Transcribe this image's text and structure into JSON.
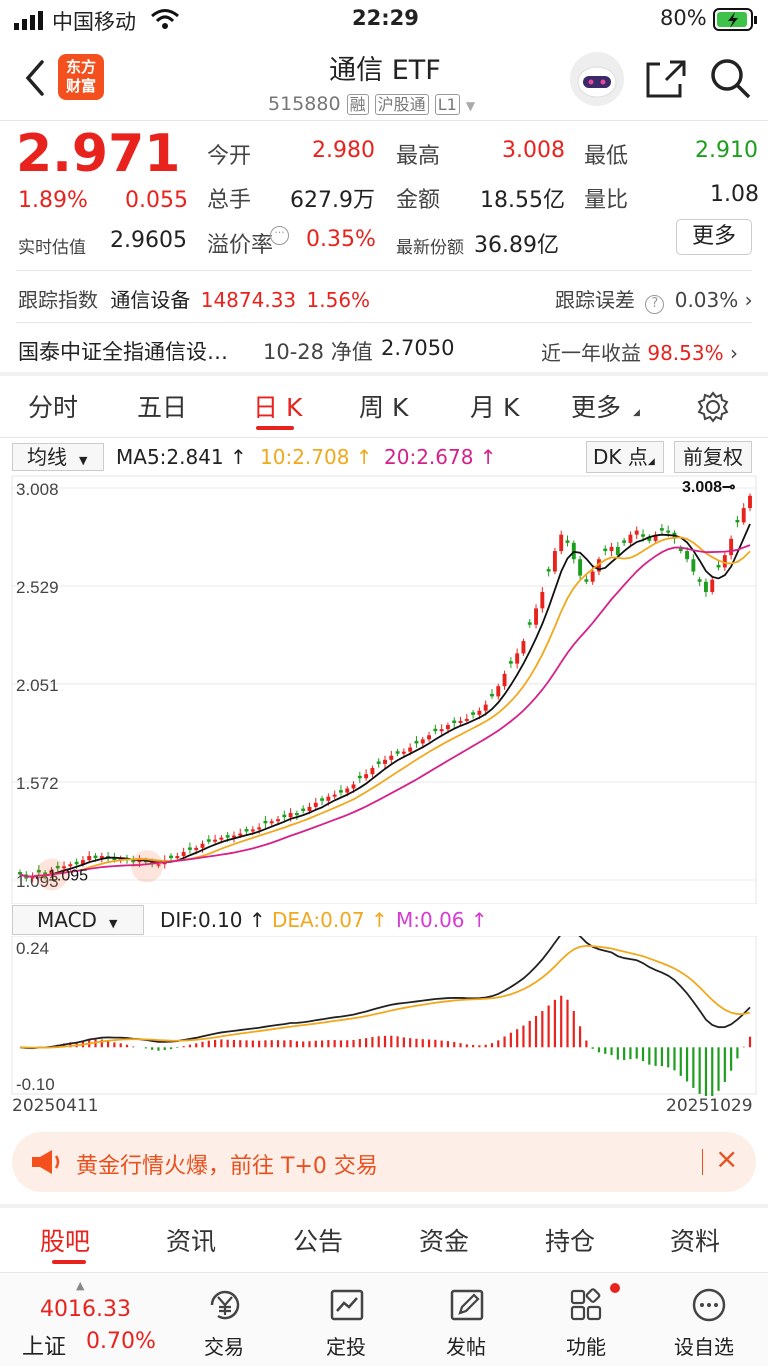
{
  "status_bar": {
    "carrier": "中国移动",
    "time": "22:29",
    "battery": "80%"
  },
  "header": {
    "logo_text": "东方\n财富",
    "title": "通信 ETF",
    "code": "515880",
    "tag_rong": "融",
    "tag_hgt": "沪股通",
    "tag_level": "L1"
  },
  "quote": {
    "price": "2.971",
    "change_pct": "1.89%",
    "change": "0.055",
    "iopv_label": "实时估值",
    "iopv": "2.9605",
    "open_label": "今开",
    "open": "2.980",
    "high_label": "最高",
    "high": "3.008",
    "low_label": "最低",
    "low": "2.910",
    "vol_label": "总手",
    "vol": "627.9万",
    "amount_label": "金额",
    "amount": "18.55亿",
    "ratio_label": "量比",
    "ratio": "1.08",
    "premium_label": "溢价率",
    "premium": "0.35%",
    "shares_label": "最新份额",
    "shares": "36.89亿",
    "more": "更多"
  },
  "tracking": {
    "label": "跟踪指数",
    "index": "通信设备",
    "value": "14874.33",
    "pct": "1.56%",
    "err_label": "跟踪误差",
    "err": "0.03%"
  },
  "fund": {
    "name": "国泰中证全指通信设…",
    "nav_date": "10-28 净值",
    "nav": "2.7050",
    "return_label": "近一年收益",
    "return": "98.53%"
  },
  "chart_tabs": [
    "分时",
    "五日",
    "日 K",
    "周 K",
    "月 K",
    "更多"
  ],
  "active_tab": "日 K",
  "kline_bar": {
    "ma_select": "均线",
    "ma5": "MA5:2.841",
    "ma10": "10:2.708",
    "ma20": "20:2.678",
    "dk": "DK 点",
    "fq": "前复权"
  },
  "macd_bar": {
    "select": "MACD",
    "dif": "DIF:0.10",
    "dea": "DEA:0.07",
    "m": "M:0.06"
  },
  "chart_data": {
    "type": "candlestick",
    "y_ticks": [
      "3.008",
      "2.529",
      "2.051",
      "1.572",
      "1.093"
    ],
    "ylim": [
      1.093,
      3.008
    ],
    "max_label": "3.008",
    "min_label": "1.095",
    "start_date": "20250411",
    "end_date": "20251029",
    "close": [
      1.12,
      1.1,
      1.11,
      1.13,
      1.12,
      1.14,
      1.15,
      1.16,
      1.17,
      1.17,
      1.19,
      1.21,
      1.2,
      1.21,
      1.2,
      1.19,
      1.2,
      1.19,
      1.18,
      1.19,
      1.18,
      1.17,
      1.17,
      1.19,
      1.2,
      1.21,
      1.23,
      1.24,
      1.25,
      1.27,
      1.28,
      1.29,
      1.3,
      1.3,
      1.31,
      1.32,
      1.33,
      1.34,
      1.35,
      1.37,
      1.38,
      1.39,
      1.4,
      1.42,
      1.41,
      1.43,
      1.45,
      1.47,
      1.48,
      1.5,
      1.51,
      1.52,
      1.54,
      1.56,
      1.59,
      1.61,
      1.64,
      1.66,
      1.68,
      1.7,
      1.71,
      1.72,
      1.74,
      1.76,
      1.78,
      1.8,
      1.82,
      1.83,
      1.85,
      1.86,
      1.87,
      1.88,
      1.9,
      1.92,
      1.95,
      1.99,
      2.04,
      2.1,
      2.15,
      2.2,
      2.26,
      2.34,
      2.42,
      2.5,
      2.6,
      2.7,
      2.78,
      2.74,
      2.66,
      2.58,
      2.55,
      2.6,
      2.66,
      2.7,
      2.72,
      2.68,
      2.74,
      2.78,
      2.8,
      2.77,
      2.75,
      2.78,
      2.8,
      2.79,
      2.76,
      2.7,
      2.66,
      2.6,
      2.55,
      2.5,
      2.56,
      2.62,
      2.68,
      2.76,
      2.84,
      2.91,
      2.97
    ],
    "macd_yticks": [
      "0.24",
      "-0.10"
    ],
    "macd_ylim": [
      -0.1,
      0.24
    ]
  },
  "promo": {
    "text": "黄金行情火爆，前往 T+0 交易"
  },
  "bottom_tabs": [
    "股吧",
    "资讯",
    "公告",
    "资金",
    "持仓",
    "资料"
  ],
  "bottom_active": "股吧",
  "index_ticker": {
    "value": "4016.33",
    "name": "上证",
    "pct": "0.70%"
  },
  "toolbar": [
    {
      "label": "交易"
    },
    {
      "label": "定投"
    },
    {
      "label": "发帖"
    },
    {
      "label": "功能"
    },
    {
      "label": "设自选"
    }
  ]
}
